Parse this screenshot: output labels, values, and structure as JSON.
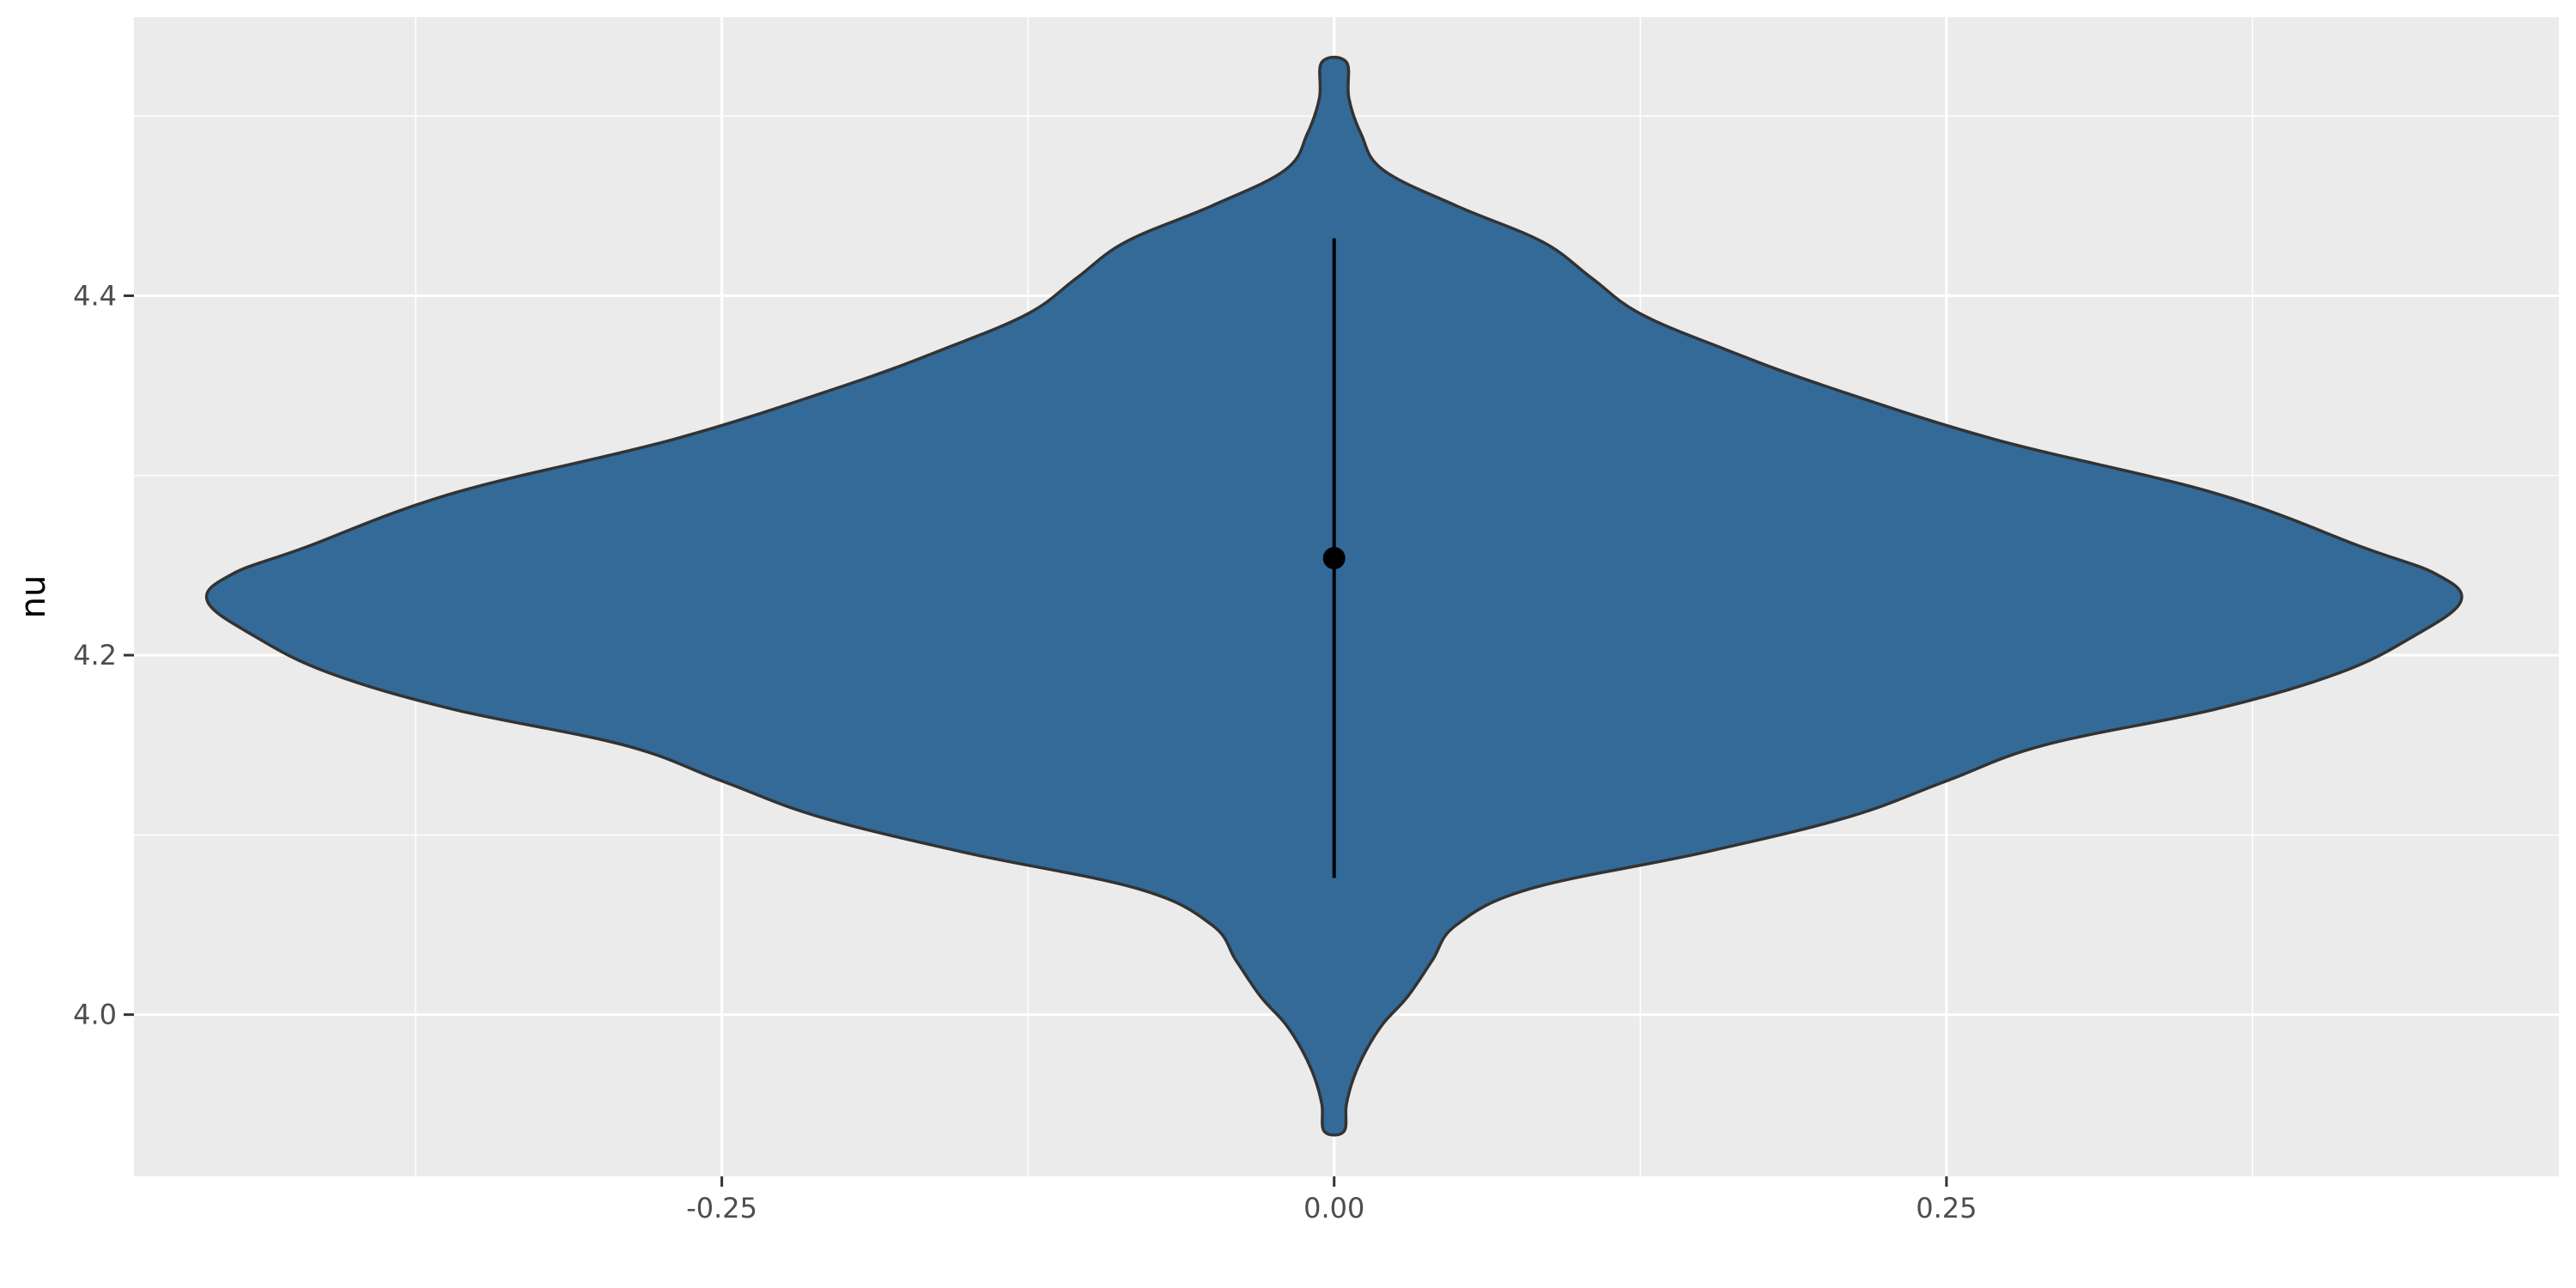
{
  "chart_data": {
    "type": "violin",
    "xlabel": "",
    "ylabel": "nu",
    "xlim": [
      -0.49,
      0.5
    ],
    "ylim": [
      3.91,
      4.555
    ],
    "x_ticks": [
      -0.25,
      0.0,
      0.25
    ],
    "x_tick_labels": [
      "-0.25",
      "0.00",
      "0.25"
    ],
    "y_ticks": [
      4.0,
      4.2,
      4.4
    ],
    "y_tick_labels": [
      "4.0",
      "4.2",
      "4.4"
    ],
    "grid": true,
    "colors": {
      "panel": "#ebebeb",
      "grid": "#ffffff",
      "violin_fill": "#336a98",
      "violin_outline": "#333333",
      "summary": "#000000"
    },
    "violin": {
      "center_x": 0.0,
      "y_min": 3.935,
      "y_max": 4.53,
      "half_width_profile": [
        [
          3.935,
          0.004
        ],
        [
          3.95,
          0.005
        ],
        [
          3.965,
          0.008
        ],
        [
          3.98,
          0.013
        ],
        [
          3.995,
          0.02
        ],
        [
          4.01,
          0.03
        ],
        [
          4.03,
          0.04
        ],
        [
          4.05,
          0.05
        ],
        [
          4.07,
          0.08
        ],
        [
          4.09,
          0.15
        ],
        [
          4.11,
          0.21
        ],
        [
          4.13,
          0.25
        ],
        [
          4.15,
          0.29
        ],
        [
          4.17,
          0.36
        ],
        [
          4.19,
          0.41
        ],
        [
          4.21,
          0.44
        ],
        [
          4.23,
          0.46
        ],
        [
          4.245,
          0.45
        ],
        [
          4.26,
          0.42
        ],
        [
          4.29,
          0.36
        ],
        [
          4.32,
          0.27
        ],
        [
          4.35,
          0.2
        ],
        [
          4.37,
          0.16
        ],
        [
          4.39,
          0.125
        ],
        [
          4.41,
          0.105
        ],
        [
          4.43,
          0.085
        ],
        [
          4.45,
          0.05
        ],
        [
          4.47,
          0.02
        ],
        [
          4.49,
          0.011
        ],
        [
          4.51,
          0.006
        ],
        [
          4.53,
          0.005
        ]
      ]
    },
    "summary": {
      "point": 4.254,
      "lower": 4.076,
      "upper": 4.432
    }
  }
}
